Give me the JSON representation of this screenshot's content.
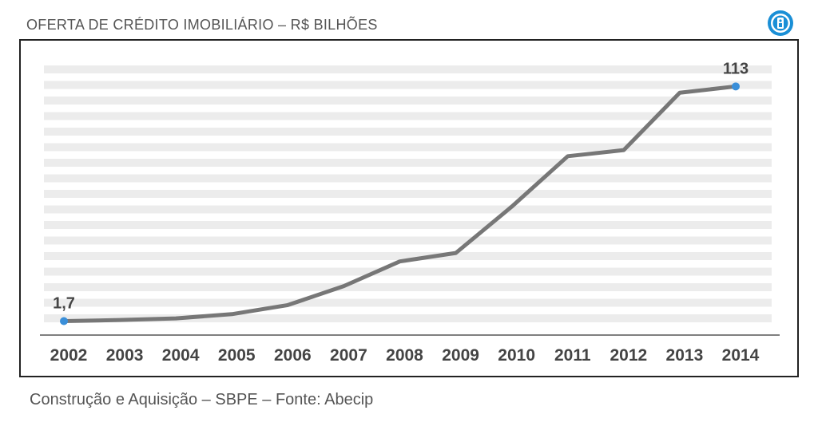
{
  "header": {
    "title": "OFERTA DE CRÉDITO IMOBILIÁRIO – R$ BILHÕES",
    "logo_icon": "key-badge-icon",
    "logo_color": "#1a8fd6"
  },
  "footer": {
    "caption": "Construção e Aquisição – SBPE – Fonte: Abecip"
  },
  "colors": {
    "line": "#777777",
    "marker": "#3a8fd9",
    "band": "#ececec",
    "axis": "#555555",
    "text": "#444444"
  },
  "chart_data": {
    "type": "line",
    "title": "OFERTA DE CRÉDITO IMOBILIÁRIO – R$ BILHÕES",
    "xlabel": "",
    "ylabel": "",
    "categories": [
      "2002",
      "2003",
      "2004",
      "2005",
      "2006",
      "2007",
      "2008",
      "2009",
      "2010",
      "2011",
      "2012",
      "2013",
      "2014"
    ],
    "series": [
      {
        "values": [
          1.7,
          2.2,
          3.0,
          5.0,
          9.3,
          18.3,
          30.0,
          34.0,
          56.0,
          79.9,
          82.8,
          110.0,
          113
        ]
      }
    ],
    "ylim": [
      0,
      120
    ],
    "grid": "horizontal bands",
    "legend": "none",
    "annotations": [
      {
        "category": "2002",
        "label": "1,7"
      },
      {
        "category": "2014",
        "label": "113"
      }
    ]
  }
}
